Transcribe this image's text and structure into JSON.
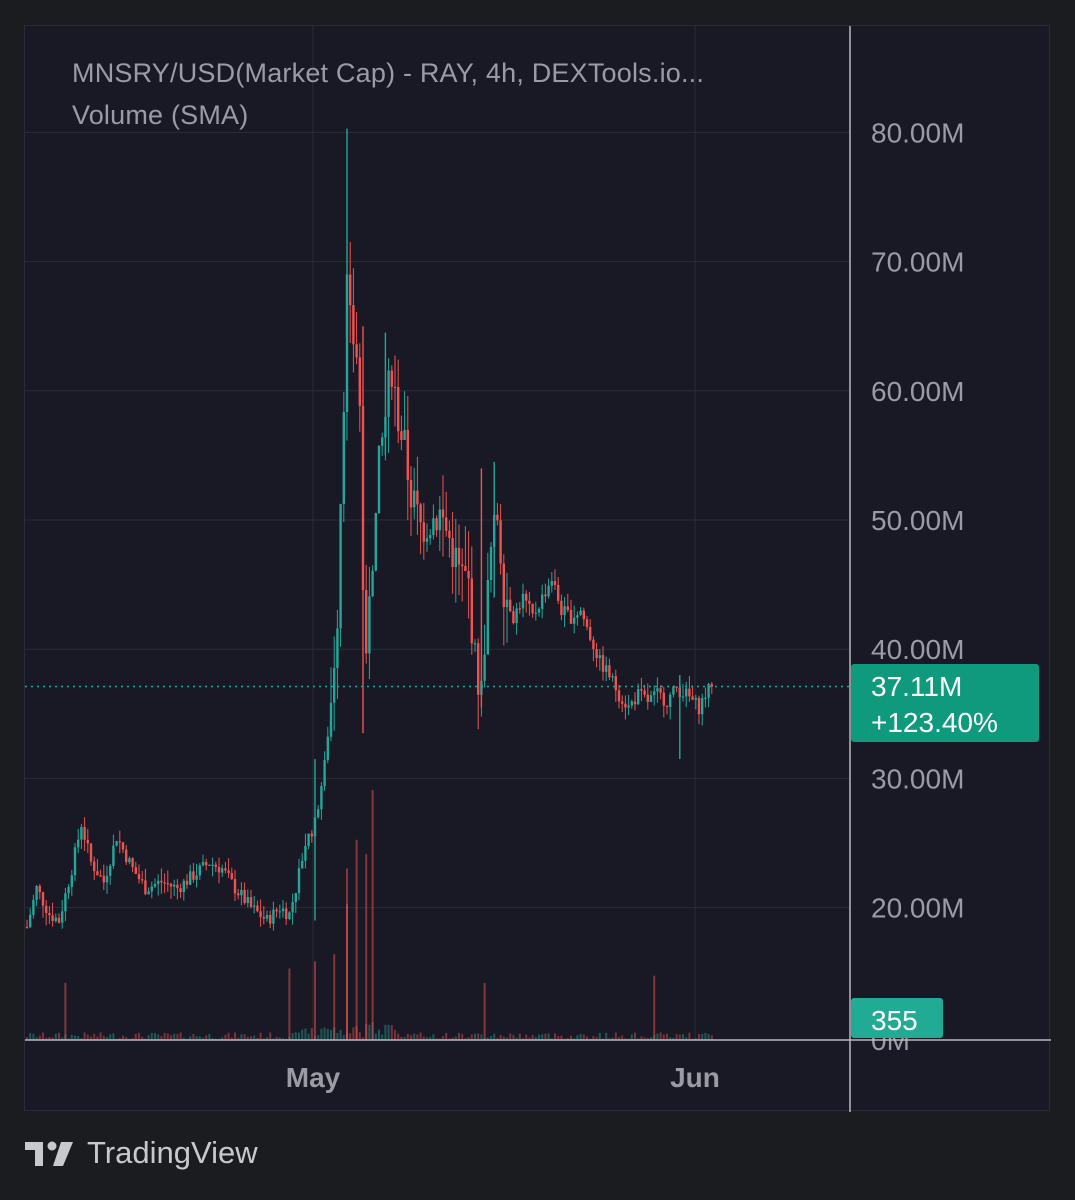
{
  "legend": {
    "title_line": "MNSRY/USD(Market Cap)  - RAY, 4h, DEXTools.io...",
    "volume_line": "Volume (SMA)"
  },
  "footer": {
    "brand": "TradingView",
    "logo_icon": "tradingview-logo-icon"
  },
  "colors": {
    "up": "#26a69a",
    "down": "#ef5350",
    "background": "#181924",
    "grid": "#2a2c38",
    "axis_text": "#9a9ba3",
    "price_badge": "#0f9a7d",
    "volume_badge": "#22ab94"
  },
  "price_badge": {
    "value": "37.11M",
    "change": "+123.40%"
  },
  "volume_badge": {
    "value": "355"
  },
  "chart_data": {
    "type": "candlestick",
    "title": "MNSRY/USD(Market Cap)  - RAY, 4h, DEXTools.io...",
    "ylim": [
      0,
      85000000
    ],
    "y_ticks": [
      20000000,
      30000000,
      40000000,
      50000000,
      60000000,
      70000000,
      80000000
    ],
    "y_tick_labels": [
      "20.00M",
      "30.00M",
      "40.00M",
      "50.00M",
      "60.00M",
      "70.00M",
      "80.00M"
    ],
    "partial_bottom_tick": "0M",
    "x_tick_labels": [
      "May",
      "Jun"
    ],
    "grid": true,
    "current_value": 37110000,
    "current_change_pct": 123.4,
    "current_volume": 355,
    "price_path": [
      [
        0,
        18.5
      ],
      [
        3,
        21.5
      ],
      [
        7,
        19.5
      ],
      [
        10,
        19.0
      ],
      [
        14,
        23.0
      ],
      [
        17,
        26.5
      ],
      [
        20,
        23.5
      ],
      [
        24,
        22.0
      ],
      [
        28,
        25.5
      ],
      [
        33,
        23.0
      ],
      [
        37,
        21.5
      ],
      [
        42,
        22.0
      ],
      [
        47,
        21.5
      ],
      [
        52,
        22.5
      ],
      [
        57,
        23.5
      ],
      [
        61,
        23.0
      ],
      [
        65,
        21.5
      ],
      [
        70,
        20.0
      ],
      [
        75,
        19.0
      ],
      [
        79,
        20.0
      ],
      [
        82,
        19.5
      ],
      [
        84,
        21.5
      ],
      [
        87,
        25.0
      ],
      [
        90,
        26.5
      ],
      [
        93,
        31.0
      ],
      [
        95,
        36.0
      ],
      [
        97,
        43.0
      ],
      [
        98,
        52.0
      ],
      [
        99,
        60.0
      ],
      [
        100,
        68.0
      ],
      [
        101,
        65.0
      ],
      [
        103,
        63.0
      ],
      [
        104,
        58.5
      ],
      [
        105,
        45.0
      ],
      [
        106,
        38.0
      ],
      [
        107,
        45.0
      ],
      [
        109,
        50.0
      ],
      [
        110,
        54.0
      ],
      [
        112,
        58.0
      ],
      [
        114,
        62.0
      ],
      [
        116,
        58.0
      ],
      [
        118,
        55.5
      ],
      [
        120,
        52.0
      ],
      [
        123,
        49.5
      ],
      [
        126,
        50.0
      ],
      [
        129,
        50.5
      ],
      [
        132,
        48.5
      ],
      [
        135,
        46.0
      ],
      [
        138,
        45.0
      ],
      [
        140,
        39.0
      ],
      [
        142,
        36.5
      ],
      [
        143,
        41.0
      ],
      [
        145,
        47.5
      ],
      [
        147,
        50.5
      ],
      [
        149,
        45.0
      ],
      [
        152,
        42.5
      ],
      [
        155,
        44.0
      ],
      [
        158,
        42.5
      ],
      [
        161,
        44.0
      ],
      [
        164,
        45.5
      ],
      [
        167,
        43.0
      ],
      [
        170,
        42.5
      ],
      [
        173,
        43.0
      ],
      [
        176,
        41.0
      ],
      [
        179,
        39.0
      ],
      [
        182,
        38.0
      ],
      [
        185,
        36.5
      ],
      [
        188,
        35.5
      ],
      [
        191,
        36.5
      ],
      [
        194,
        36.0
      ],
      [
        197,
        36.5
      ],
      [
        200,
        36.0
      ],
      [
        203,
        37.0
      ],
      [
        206,
        36.5
      ],
      [
        208,
        36.0
      ],
      [
        210,
        35.5
      ],
      [
        212,
        36.5
      ],
      [
        214,
        37.11
      ]
    ],
    "volume_spikes": [
      [
        100,
        9500
      ],
      [
        103,
        14000
      ],
      [
        106,
        13000
      ],
      [
        108,
        20000
      ],
      [
        100,
        12000
      ],
      [
        82,
        5000
      ],
      [
        90,
        5500
      ],
      [
        96,
        6000
      ],
      [
        143,
        4000
      ],
      [
        196,
        4500
      ],
      [
        12,
        4000
      ]
    ]
  }
}
